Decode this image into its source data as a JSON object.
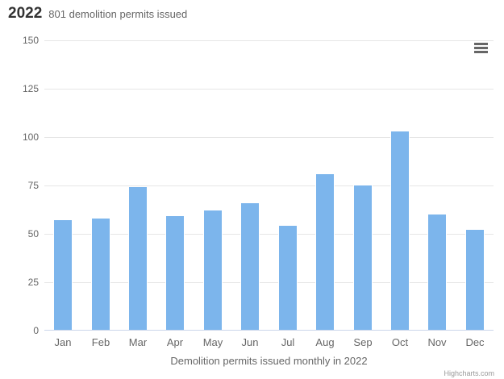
{
  "header": {
    "title": "2022",
    "subtitle": "801 demolition permits issued"
  },
  "chart_data": {
    "type": "bar",
    "title": "2022",
    "subtitle": "801 demolition permits issued",
    "categories": [
      "Jan",
      "Feb",
      "Mar",
      "Apr",
      "May",
      "Jun",
      "Jul",
      "Aug",
      "Sep",
      "Oct",
      "Nov",
      "Dec"
    ],
    "values": [
      57,
      58,
      74,
      59,
      62,
      66,
      54,
      81,
      75,
      103,
      60,
      52
    ],
    "total": 801,
    "xlabel": "Demolition permits issued monthly in 2022",
    "ylabel": "",
    "ylim": [
      0,
      150
    ],
    "yticks": [
      0,
      25,
      50,
      75,
      100,
      125,
      150
    ],
    "grid": true,
    "legend": false
  },
  "colors": {
    "bar": "#7cb5ec",
    "bar_border": "#ffffff",
    "grid": "#e6e6e6",
    "axis_line": "#ccd6eb",
    "title_text": "#333333",
    "muted_text": "#666666",
    "credit_text": "#999999"
  },
  "menu": {
    "icon": "hamburger-icon"
  },
  "credit": {
    "label": "Highcharts.com"
  }
}
